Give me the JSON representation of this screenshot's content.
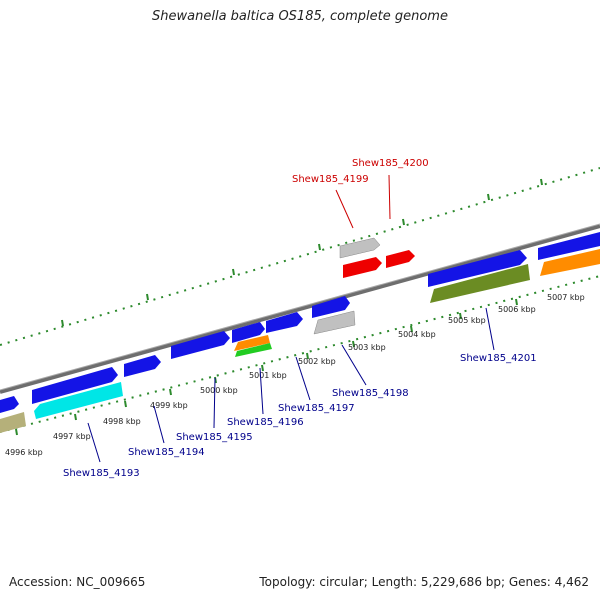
{
  "title": "Shewanella baltica OS185, complete genome",
  "footer": {
    "accession": "Accession: NC_009665",
    "summary": "Topology: circular; Length: 5,229,686 bp; Genes: 4,462"
  },
  "colors": {
    "backbone": "#7f7f7f",
    "tick": "#2d8a2d",
    "highlight_label": "#cc0000",
    "gene_label": "#00008b",
    "blue": "#1414e6",
    "cyan": "#00e6e6",
    "olive": "#6b8c23",
    "orange": "#ff8c00",
    "gray": "#c0c0c0",
    "red": "#ee0000",
    "green": "#22cc22",
    "khaki": "#b5b07a"
  },
  "scale_labels": [
    "4996 kbp",
    "4997 kbp",
    "4998 kbp",
    "4999 kbp",
    "5000 kbp",
    "5001 kbp",
    "5002 kbp",
    "5003 kbp",
    "5004 kbp",
    "5005 kbp",
    "5006 kbp",
    "5007 kbp"
  ],
  "gene_labels": {
    "highlight": [
      "Shew185_4199",
      "Shew185_4200"
    ],
    "regular": [
      "Shew185_4193",
      "Shew185_4194",
      "Shew185_4195",
      "Shew185_4196",
      "Shew185_4197",
      "Shew185_4198",
      "Shew185_4201"
    ]
  }
}
